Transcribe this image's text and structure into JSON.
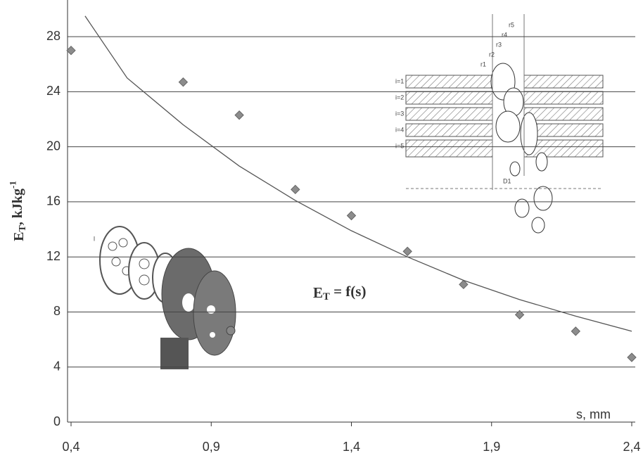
{
  "chart_data": {
    "type": "scatter",
    "ylabel": {
      "main": "E",
      "sub": "T",
      "rest": ", kJkg",
      "sup": "-1"
    },
    "xlabel": "s, mm",
    "annotation": {
      "main": "E",
      "sub": "T",
      "rest": " = f(s)"
    },
    "xlim": [
      0.4,
      2.4
    ],
    "ylim": [
      0,
      30
    ],
    "xticks": [
      {
        "value": 0.4,
        "label": "0,4"
      },
      {
        "value": 0.9,
        "label": "0,9"
      },
      {
        "value": 1.4,
        "label": "1,4"
      },
      {
        "value": 1.9,
        "label": "1,9"
      },
      {
        "value": 2.4,
        "label": "2,4"
      }
    ],
    "yticks": [
      0,
      4,
      8,
      12,
      16,
      20,
      24,
      28
    ],
    "grid": true,
    "series": [
      {
        "kind": "points",
        "color": "#8c8c8c",
        "x": [
          0.4,
          0.8,
          1.0,
          1.2,
          1.4,
          1.6,
          1.8,
          2.0,
          2.2,
          2.4
        ],
        "values": [
          27.0,
          24.7,
          22.3,
          16.9,
          15.0,
          12.4,
          10.0,
          7.8,
          6.6,
          4.7
        ]
      },
      {
        "kind": "curve",
        "color": "#555555",
        "x": [
          0.45,
          0.6,
          0.8,
          1.0,
          1.2,
          1.4,
          1.6,
          1.8,
          2.0,
          2.2,
          2.4
        ],
        "values": [
          29.5,
          25.0,
          21.6,
          18.6,
          16.1,
          13.9,
          12.0,
          10.3,
          8.9,
          7.7,
          6.6
        ]
      }
    ],
    "inset_labels": [
      "i=1",
      "i=2",
      "i=3",
      "i=4",
      "i=5",
      "r1",
      "r2",
      "r3",
      "r4",
      "r5",
      "D1",
      "l"
    ]
  }
}
